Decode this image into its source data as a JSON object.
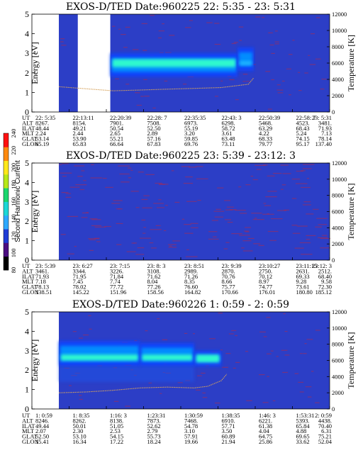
{
  "colors": {
    "background": "#2c3ec6",
    "band_outer": "#0b44ff",
    "band_mid": "#0099ff",
    "band_core": "#33ffcc",
    "temperature_curve": "#d6a25c",
    "speckle": "#b2284a"
  },
  "chart_data": [
    {
      "type": "heatmap",
      "title": "EXOS-D/TED   Date:960225  22: 5:35 - 23: 5:31",
      "ylabel": "Energy [eV]",
      "y2label": "Temperature [K]",
      "ylim": [
        0,
        5
      ],
      "y2lim": [
        0,
        12000
      ],
      "yticks": [
        "0",
        "1",
        "2",
        "3",
        "4",
        "5"
      ],
      "y2ticks": [
        "0",
        "2000",
        "4000",
        "6000",
        "8000",
        "10000",
        "12000"
      ],
      "data_gap": [
        0.07,
        0.19
      ],
      "bands": [
        {
          "t": [
            0.19,
            0.66
          ],
          "e": [
            1.8,
            3.0
          ],
          "core": [
            2.3,
            2.7
          ],
          "level": "strong"
        },
        {
          "t": [
            0.66,
            0.72
          ],
          "e": [
            2.1,
            3.3
          ],
          "core": [
            2.4,
            2.6
          ],
          "level": "medium"
        }
      ],
      "temperature_curve": [
        [
          0.0,
          3100
        ],
        [
          0.04,
          3000
        ],
        [
          0.2,
          2600
        ],
        [
          0.3,
          2700
        ],
        [
          0.4,
          2800
        ],
        [
          0.5,
          2900
        ],
        [
          0.6,
          3000
        ],
        [
          0.7,
          3400
        ],
        [
          0.72,
          4200
        ]
      ],
      "table": {
        "labels": [
          "UT",
          "ALT",
          "ILAT",
          "MLT",
          "GLAT",
          "GLON"
        ],
        "columns": [
          [
            "22: 5:35",
            "8267.",
            "48.44",
            "2.24",
            "53.14",
            "65.19"
          ],
          [
            "22:13:11",
            "8154.",
            "49.21",
            "2.44",
            "53.90",
            "65.83"
          ],
          [
            "22:20:39",
            "7901.",
            "50.54",
            "2.65",
            "55.21",
            "66.64"
          ],
          [
            "22:28: 7",
            "7508.",
            "52.50",
            "2.89",
            "57.16",
            "67.83"
          ],
          [
            "22:35:35",
            "6973.",
            "55.19",
            "3.20",
            "59.85",
            "69.76"
          ],
          [
            "22:43: 3",
            "6298.",
            "58.72",
            "3.61",
            "63.48",
            "73.11"
          ],
          [
            "22:50:39",
            "5468.",
            "63.29",
            "4.22",
            "68.33",
            "79.77"
          ],
          [
            "22:58: 7",
            "4523.",
            "68.43",
            "5.24",
            "74.15",
            "95.17"
          ],
          [
            "23: 5:31",
            "3481.",
            "71.93",
            "7.13",
            "78.14",
            "137.40"
          ]
        ]
      }
    },
    {
      "type": "heatmap",
      "title": "EXOS-D/TED   Date:960225  23: 5:39 - 23:12: 3",
      "ylabel": "Energy [eV]",
      "y2label": "Temperature [K]",
      "ylim": [
        0,
        5
      ],
      "y2lim": [
        0,
        12000
      ],
      "yticks": [
        "0",
        "1",
        "2",
        "3",
        "4",
        "5"
      ],
      "y2ticks": [
        "0",
        "2000",
        "4000",
        "6000",
        "8000",
        "10000",
        "12000"
      ],
      "data_gap": null,
      "bands": [],
      "temperature_curve": [],
      "table": {
        "labels": [
          "UT",
          "ALT",
          "ILAT",
          "MLT",
          "GLAT",
          "GLON"
        ],
        "columns": [
          [
            "23: 5:39",
            "3461.",
            "71.93",
            "7.18",
            "78.13",
            "138.51"
          ],
          [
            "23: 6:27",
            "3344.",
            "71.95",
            "7.45",
            "78.02",
            "145.22"
          ],
          [
            "23: 7:15",
            "3226.",
            "71.84",
            "7.74",
            "77.72",
            "151.96"
          ],
          [
            "23: 8: 3",
            "3108.",
            "71.62",
            "8.04",
            "77.26",
            "158.56"
          ],
          [
            "23: 8:51",
            "2989.",
            "71.26",
            "8.35",
            "76.60",
            "164.82"
          ],
          [
            "23: 9:39",
            "2870.",
            "70.76",
            "8.66",
            "75.77",
            "170.66"
          ],
          [
            "23:10:27",
            "2750.",
            "70.12",
            "8.97",
            "74.77",
            "176.01"
          ],
          [
            "23:11:15",
            "2631.",
            "69.33",
            "9.28",
            "73.61",
            "180.80"
          ],
          [
            "23:12: 3",
            "2512.",
            "68.40",
            "9.58",
            "72.30",
            "185.12"
          ]
        ]
      }
    },
    {
      "type": "heatmap",
      "title": "EXOS-D/TED   Date:960226  1: 0:59 - 2: 0:59",
      "ylabel": "Energy [eV]",
      "y2label": "Temperature [K]",
      "ylim": [
        0,
        5
      ],
      "y2lim": [
        0,
        12000
      ],
      "yticks": [
        "0",
        "1",
        "2",
        "3",
        "4",
        "5"
      ],
      "y2ticks": [
        "0",
        "2000",
        "4000",
        "6000",
        "8000",
        "10000",
        "12000"
      ],
      "data_gap": null,
      "bands": [
        {
          "t": [
            0.0,
            0.3
          ],
          "e": [
            2.2,
            3.5
          ],
          "core": [
            2.5,
            2.8
          ],
          "level": "strong"
        },
        {
          "t": [
            0.3,
            0.5
          ],
          "e": [
            2.2,
            3.4
          ],
          "core": [
            2.5,
            2.8
          ],
          "level": "strong"
        },
        {
          "t": [
            0.5,
            0.6
          ],
          "e": [
            2.2,
            3.0
          ],
          "core": [
            2.4,
            2.8
          ],
          "level": "strong"
        },
        {
          "t": [
            0.0,
            0.5
          ],
          "e": [
            1.4,
            2.2
          ],
          "core": null,
          "level": "weak"
        }
      ],
      "temperature_curve": [
        [
          0.0,
          2000
        ],
        [
          0.1,
          2100
        ],
        [
          0.2,
          2300
        ],
        [
          0.3,
          2600
        ],
        [
          0.4,
          2700
        ],
        [
          0.5,
          2600
        ],
        [
          0.55,
          2800
        ],
        [
          0.6,
          3500
        ],
        [
          0.62,
          4300
        ]
      ],
      "table": {
        "labels": [
          "UT",
          "ALT",
          "ILAT",
          "MLT",
          "GLAT",
          "GLON"
        ],
        "columns": [
          [
            "1: 0:59",
            "8246.",
            "49.44",
            "2.07",
            "52.50",
            "15.41"
          ],
          [
            "1: 8:35",
            "8262.",
            "50.01",
            "2.30",
            "53.10",
            "16.34"
          ],
          [
            "1:16: 3",
            "8138.",
            "51.05",
            "2.53",
            "54.15",
            "17.22"
          ],
          [
            "1:23:31",
            "7873.",
            "52.62",
            "2.79",
            "55.73",
            "18.24"
          ],
          [
            "1:30:59",
            "7468.",
            "54.78",
            "3.10",
            "57.91",
            "19.66"
          ],
          [
            "1:38:35",
            "6910.",
            "57.71",
            "3.50",
            "60.89",
            "21.94"
          ],
          [
            "1:46: 3",
            "6221.",
            "61.38",
            "4.04",
            "64.75",
            "25.86"
          ],
          [
            "1:53:31",
            "5393.",
            "65.84",
            "4.88",
            "69.65",
            "33.62"
          ],
          [
            "2: 0:59",
            "4438.",
            "70.40",
            "6.31",
            "75.21",
            "52.04"
          ]
        ]
      }
    }
  ],
  "colorbar": {
    "label": "Second Harmonic Current",
    "ticks": [
      "80",
      "100",
      "120",
      "140",
      "160",
      "180",
      "200",
      "220",
      "240"
    ],
    "range": [
      80,
      240
    ],
    "stops": [
      "#000000",
      "#4a0d80",
      "#1f3cd6",
      "#2da9ff",
      "#1cd7d6",
      "#1bd66e",
      "#b7e818",
      "#ffe81b",
      "#ff8a0f",
      "#ff1010"
    ]
  }
}
